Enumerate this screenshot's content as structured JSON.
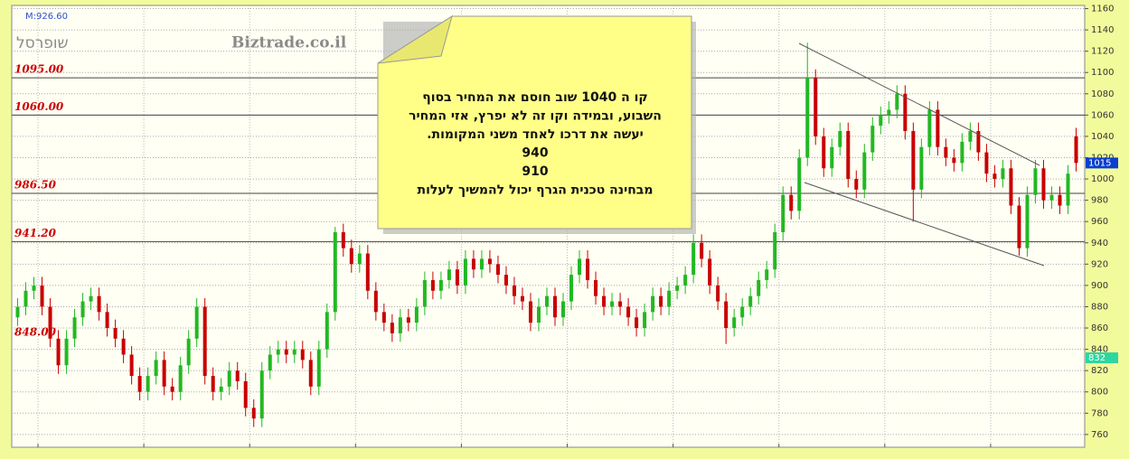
{
  "chart_data": {
    "type": "candlestick",
    "indicator": "M:926.60",
    "symbol": "שופרסל",
    "site": "Biztrade.co.il",
    "up_color": "#22b822",
    "down_color": "#c80000",
    "grid": true,
    "ylim": [
      748,
      1163
    ],
    "yticks": [
      760,
      780,
      800,
      820,
      840,
      860,
      880,
      900,
      920,
      940,
      960,
      980,
      1000,
      1020,
      1040,
      1060,
      1080,
      1100,
      1120,
      1140,
      1160
    ],
    "levels": [
      {
        "value": 1095,
        "label": "1095.00",
        "line": true
      },
      {
        "value": 1060,
        "label": "1060.00",
        "line": true
      },
      {
        "value": 986.5,
        "label": "986.50",
        "line": true
      },
      {
        "value": 941.2,
        "label": "941.20",
        "line": true
      },
      {
        "value": 848,
        "label": "848.00",
        "line": false
      }
    ],
    "price_tags": [
      {
        "value": 1015,
        "color": "#0a3fd0"
      },
      {
        "value": 832,
        "color": "#2fd6a0"
      }
    ],
    "note": {
      "color": "#ffff88",
      "lines": [
        "קו ה 1040 שוב חוסם את המחיר בסוף",
        "השבוע, ובמידה וקו זה לא יפרץ, אזי המחיר",
        "יעשה את דרכו לאחד משני המקומות.",
        "940",
        "910",
        "מבחינה טכנית הגרף יכול להמשיך לעלות"
      ]
    },
    "open": [
      870,
      880,
      895,
      900,
      880,
      850,
      825,
      850,
      870,
      885,
      890,
      875,
      860,
      850,
      835,
      815,
      800,
      815,
      830,
      805,
      800,
      825,
      850,
      880,
      815,
      800,
      805,
      820,
      810,
      785,
      775,
      820,
      835,
      840,
      835,
      840,
      830,
      805,
      840,
      875,
      950,
      935,
      920,
      930,
      895,
      875,
      865,
      855,
      870,
      865,
      880,
      905,
      895,
      905,
      915,
      900,
      925,
      915,
      925,
      920,
      910,
      900,
      890,
      885,
      865,
      880,
      890,
      870,
      885,
      910,
      925,
      905,
      890,
      880,
      885,
      880,
      870,
      860,
      875,
      890,
      880,
      895,
      900,
      910,
      940,
      925,
      900,
      885,
      860,
      870,
      880,
      890,
      905,
      915,
      950,
      985,
      970,
      1020,
      1095,
      1040,
      1010,
      1030,
      1045,
      1000,
      990,
      1025,
      1050,
      1060,
      1065,
      1080,
      1045,
      990,
      1030,
      1065,
      1030,
      1020,
      1015,
      1035,
      1045,
      1025,
      1005,
      1000,
      1010,
      975,
      935,
      985,
      1010,
      980,
      985,
      975,
      1040
    ],
    "high": [
      888,
      903,
      908,
      908,
      888,
      858,
      858,
      878,
      893,
      898,
      898,
      883,
      868,
      858,
      843,
      823,
      823,
      838,
      838,
      813,
      833,
      858,
      888,
      888,
      823,
      813,
      828,
      828,
      818,
      793,
      828,
      843,
      848,
      848,
      848,
      848,
      838,
      848,
      883,
      955,
      958,
      943,
      938,
      938,
      903,
      883,
      873,
      878,
      878,
      888,
      913,
      913,
      913,
      923,
      923,
      933,
      933,
      933,
      933,
      928,
      918,
      908,
      898,
      893,
      888,
      898,
      898,
      893,
      918,
      933,
      933,
      913,
      898,
      893,
      893,
      888,
      878,
      883,
      898,
      898,
      903,
      908,
      918,
      948,
      948,
      933,
      908,
      893,
      878,
      888,
      898,
      913,
      923,
      958,
      993,
      993,
      1028,
      1128,
      1103,
      1048,
      1038,
      1053,
      1053,
      1008,
      1033,
      1058,
      1068,
      1073,
      1088,
      1088,
      1053,
      1038,
      1073,
      1073,
      1038,
      1028,
      1043,
      1053,
      1053,
      1033,
      1013,
      1018,
      1018,
      983,
      993,
      1018,
      1018,
      993,
      993,
      1013,
      1048
    ],
    "low": [
      862,
      872,
      887,
      872,
      842,
      817,
      817,
      842,
      862,
      877,
      867,
      852,
      842,
      827,
      807,
      792,
      792,
      807,
      797,
      792,
      792,
      817,
      842,
      807,
      792,
      792,
      797,
      802,
      777,
      767,
      767,
      812,
      827,
      827,
      827,
      822,
      797,
      797,
      832,
      867,
      927,
      912,
      912,
      887,
      867,
      857,
      847,
      847,
      857,
      857,
      872,
      887,
      887,
      897,
      892,
      892,
      907,
      907,
      912,
      902,
      892,
      882,
      877,
      857,
      857,
      872,
      862,
      862,
      877,
      902,
      897,
      882,
      872,
      872,
      872,
      862,
      852,
      852,
      867,
      872,
      872,
      887,
      892,
      902,
      917,
      892,
      877,
      845,
      852,
      862,
      872,
      882,
      897,
      907,
      942,
      962,
      962,
      1012,
      1032,
      1002,
      1002,
      1022,
      992,
      982,
      982,
      1017,
      1042,
      1052,
      1057,
      1037,
      960,
      982,
      1022,
      1022,
      1012,
      1007,
      1007,
      1027,
      1017,
      997,
      992,
      992,
      967,
      928,
      927,
      977,
      972,
      972,
      967,
      967,
      1007
    ],
    "close": [
      880,
      895,
      900,
      880,
      850,
      825,
      850,
      870,
      885,
      890,
      875,
      860,
      850,
      835,
      815,
      800,
      815,
      830,
      805,
      800,
      825,
      850,
      880,
      815,
      800,
      805,
      820,
      810,
      785,
      775,
      820,
      835,
      840,
      835,
      840,
      830,
      805,
      840,
      875,
      950,
      935,
      920,
      930,
      895,
      875,
      865,
      855,
      870,
      865,
      880,
      905,
      895,
      905,
      915,
      900,
      925,
      915,
      925,
      920,
      910,
      900,
      890,
      885,
      865,
      880,
      890,
      870,
      885,
      910,
      925,
      905,
      890,
      880,
      885,
      880,
      870,
      860,
      875,
      890,
      880,
      895,
      900,
      910,
      940,
      925,
      900,
      885,
      860,
      870,
      880,
      890,
      905,
      915,
      950,
      985,
      970,
      1020,
      1095,
      1040,
      1010,
      1030,
      1045,
      1000,
      990,
      1025,
      1050,
      1060,
      1065,
      1080,
      1045,
      990,
      1030,
      1065,
      1030,
      1020,
      1015,
      1035,
      1045,
      1025,
      1005,
      1000,
      1010,
      975,
      935,
      985,
      1010,
      980,
      985,
      975,
      1005,
      1015
    ]
  }
}
